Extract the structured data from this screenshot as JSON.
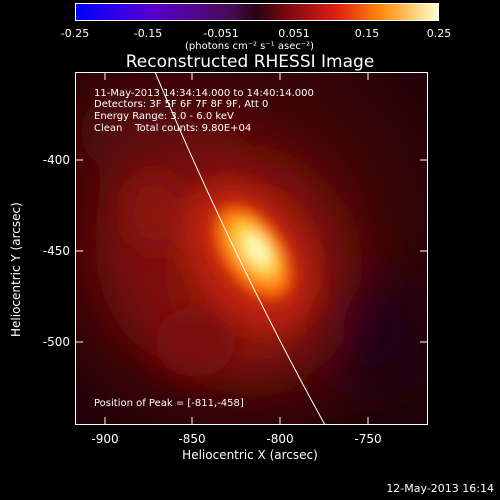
{
  "colorbar": {
    "ticks": [
      "-0.25",
      "-0.15",
      "-0.051",
      "0.051",
      "0.15",
      "0.25"
    ],
    "units": "(photons cm⁻² s⁻¹ asec⁻²)"
  },
  "title": "Reconstructed RHESSI Image",
  "info": {
    "line1": "11-May-2013 14:34:14.000 to 14:40:14.000",
    "line2": "Detectors: 3F 5F 6F 7F 8F 9F, Att 0",
    "line3": "Energy Range: 3.0 - 6.0 keV",
    "line4": "Clean    Total counts: 9.80E+04"
  },
  "peak_text": "Position of Peak = [-811,-458]",
  "axes": {
    "xlabel": "Heliocentric X (arcsec)",
    "ylabel": "Heliocentric Y (arcsec)",
    "xticks": [
      "-900",
      "-850",
      "-800",
      "-750"
    ],
    "yticks": [
      "-400",
      "-450",
      "-500"
    ]
  },
  "timestamp": "12-May-2013 16:14",
  "colors": {
    "background": "#000000",
    "limb_line": "#ffffff"
  }
}
